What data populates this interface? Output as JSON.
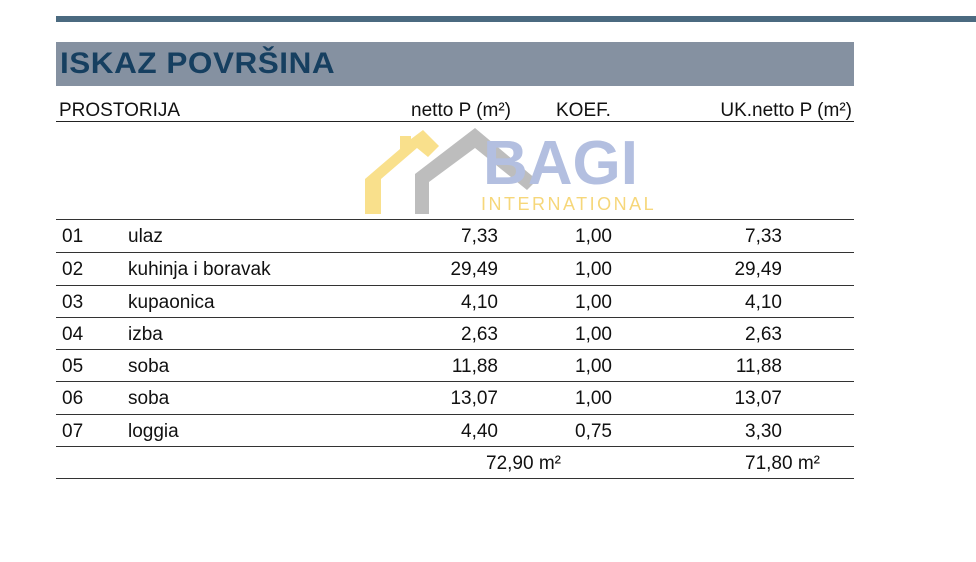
{
  "title": "ISKAZ POVRŠINA",
  "headers": {
    "room": "PROSTORIJA",
    "netto": "netto P (m²)",
    "koef": "KOEF.",
    "uk": "UK.netto P (m²)"
  },
  "rows": [
    {
      "num": "01",
      "name": "ulaz",
      "netto": "7,33",
      "koef": "1,00",
      "uk": "7,33"
    },
    {
      "num": "02",
      "name": "kuhinja i boravak",
      "netto": "29,49",
      "koef": "1,00",
      "uk": "29,49"
    },
    {
      "num": "03",
      "name": "kupaonica",
      "netto": "4,10",
      "koef": "1,00",
      "uk": "4,10"
    },
    {
      "num": "04",
      "name": "izba",
      "netto": "2,63",
      "koef": "1,00",
      "uk": "2,63"
    },
    {
      "num": "05",
      "name": "soba",
      "netto": "11,88",
      "koef": "1,00",
      "uk": "11,88"
    },
    {
      "num": "06",
      "name": "soba",
      "netto": "13,07",
      "koef": "1,00",
      "uk": "13,07"
    },
    {
      "num": "07",
      "name": "loggia",
      "netto": "4,40",
      "koef": "0,75",
      "uk": "3,30"
    }
  ],
  "totals": {
    "netto": "72,90 m²",
    "uk": "71,80 m²"
  },
  "watermark": {
    "text": "BAGI",
    "subtext": "INTERNATIONAL"
  },
  "colors": {
    "topbar": "#4b6a80",
    "titleband": "#8591a1",
    "title": "#163f60"
  }
}
